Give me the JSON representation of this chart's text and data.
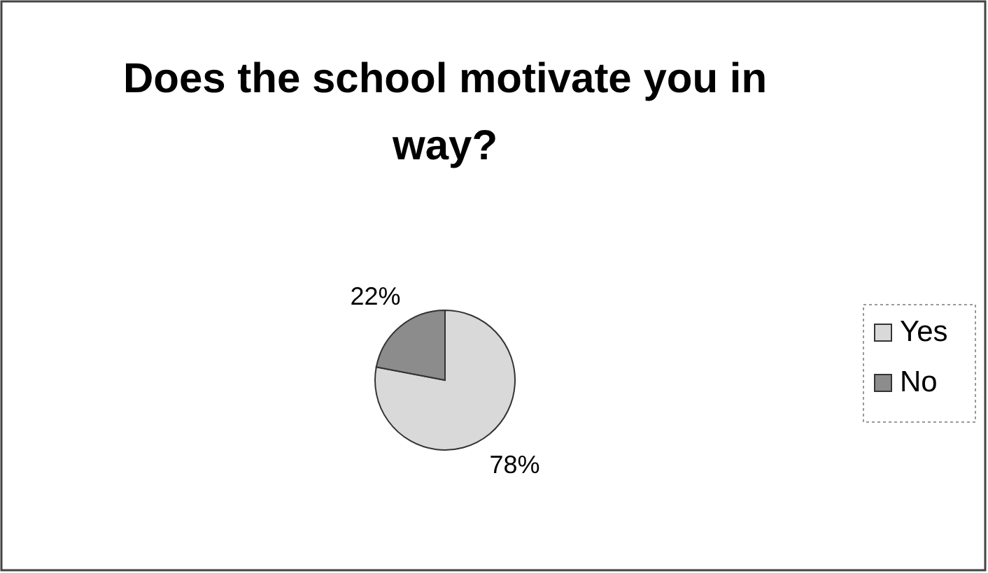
{
  "chart_data": {
    "type": "pie",
    "title": "Does the school motivate you in way?",
    "categories": [
      "Yes",
      "No"
    ],
    "values": [
      78,
      22
    ],
    "colors": [
      "#d9d9d9",
      "#8c8c8c"
    ],
    "value_labels": [
      "78%",
      "22%"
    ],
    "legend": "right"
  }
}
